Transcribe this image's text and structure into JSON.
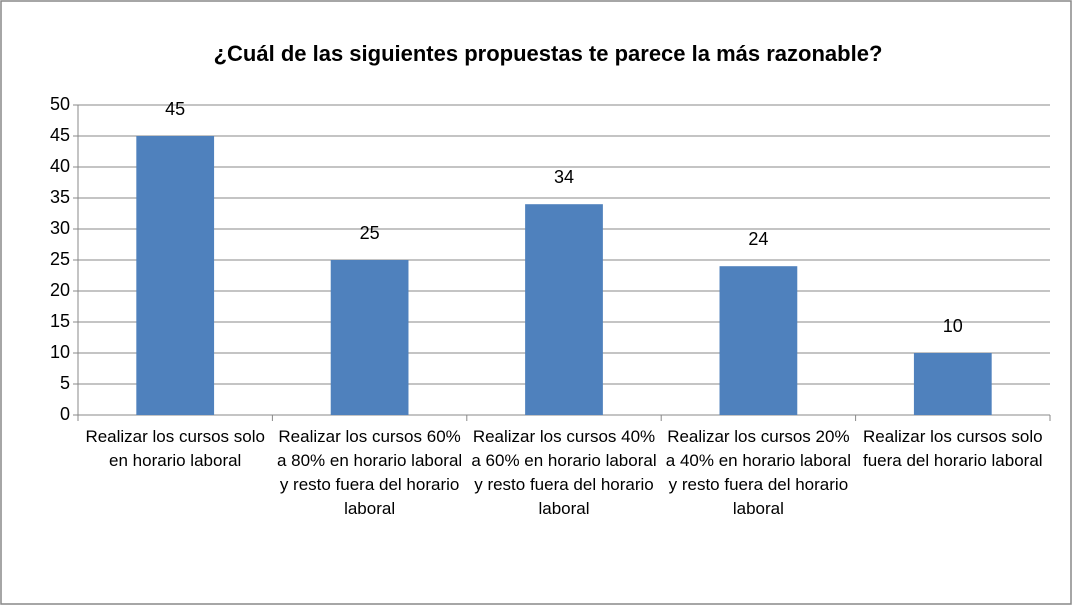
{
  "chart_data": {
    "type": "bar",
    "title": "¿Cuál de las siguientes propuestas te parece la más razonable?",
    "categories": [
      "Realizar los cursos solo en horario laboral",
      "Realizar los cursos 60% a 80% en horario laboral y resto fuera del horario laboral",
      "Realizar los cursos 40% a 60% en horario laboral y resto fuera del horario laboral",
      "Realizar los cursos 20% a 40% en horario laboral y resto fuera del horario laboral",
      "Realizar los cursos solo fuera del horario laboral"
    ],
    "values": [
      45,
      25,
      34,
      24,
      10
    ],
    "color": "#4f81bd",
    "ylim": [
      0,
      50
    ],
    "yticks": [
      0,
      5,
      10,
      15,
      20,
      25,
      30,
      35,
      40,
      45,
      50
    ],
    "grid": true
  }
}
